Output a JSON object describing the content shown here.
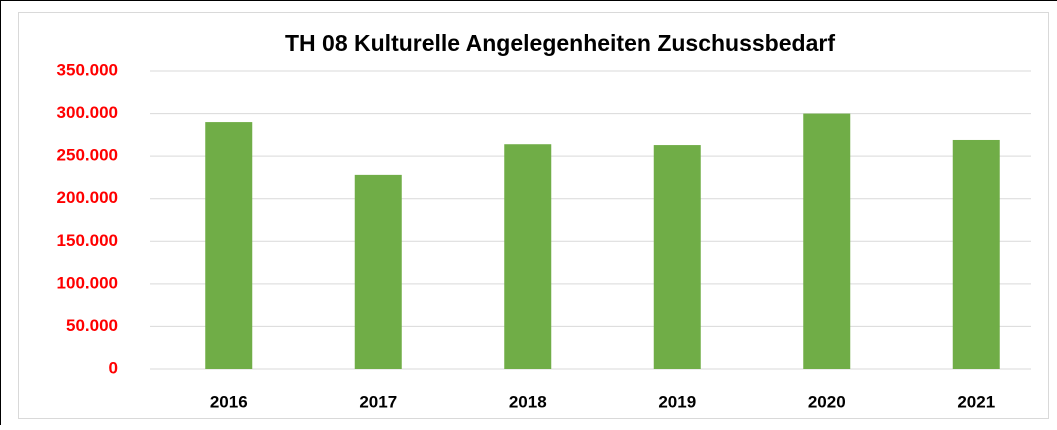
{
  "chart_data": {
    "type": "bar",
    "title": "TH 08 Kulturelle Angelegenheiten Zuschussbedarf",
    "categories": [
      "2016",
      "2017",
      "2018",
      "2019",
      "2020",
      "2021"
    ],
    "values": [
      290000,
      228000,
      264000,
      263000,
      300000,
      269000
    ],
    "color": "#70ad47",
    "ylim": [
      0,
      350000
    ],
    "yticks": [
      0,
      {
        "value": 50000,
        "label": "50.000"
      },
      {
        "value": 100000,
        "label": "100.000"
      },
      {
        "value": 150000,
        "label": "150.000"
      },
      {
        "value": 200000,
        "label": "200.000"
      },
      {
        "value": 250000,
        "label": "250.000"
      },
      {
        "value": 300000,
        "label": "300.000"
      },
      {
        "value": 350000,
        "label": "350.000"
      }
    ],
    "grid": true
  }
}
